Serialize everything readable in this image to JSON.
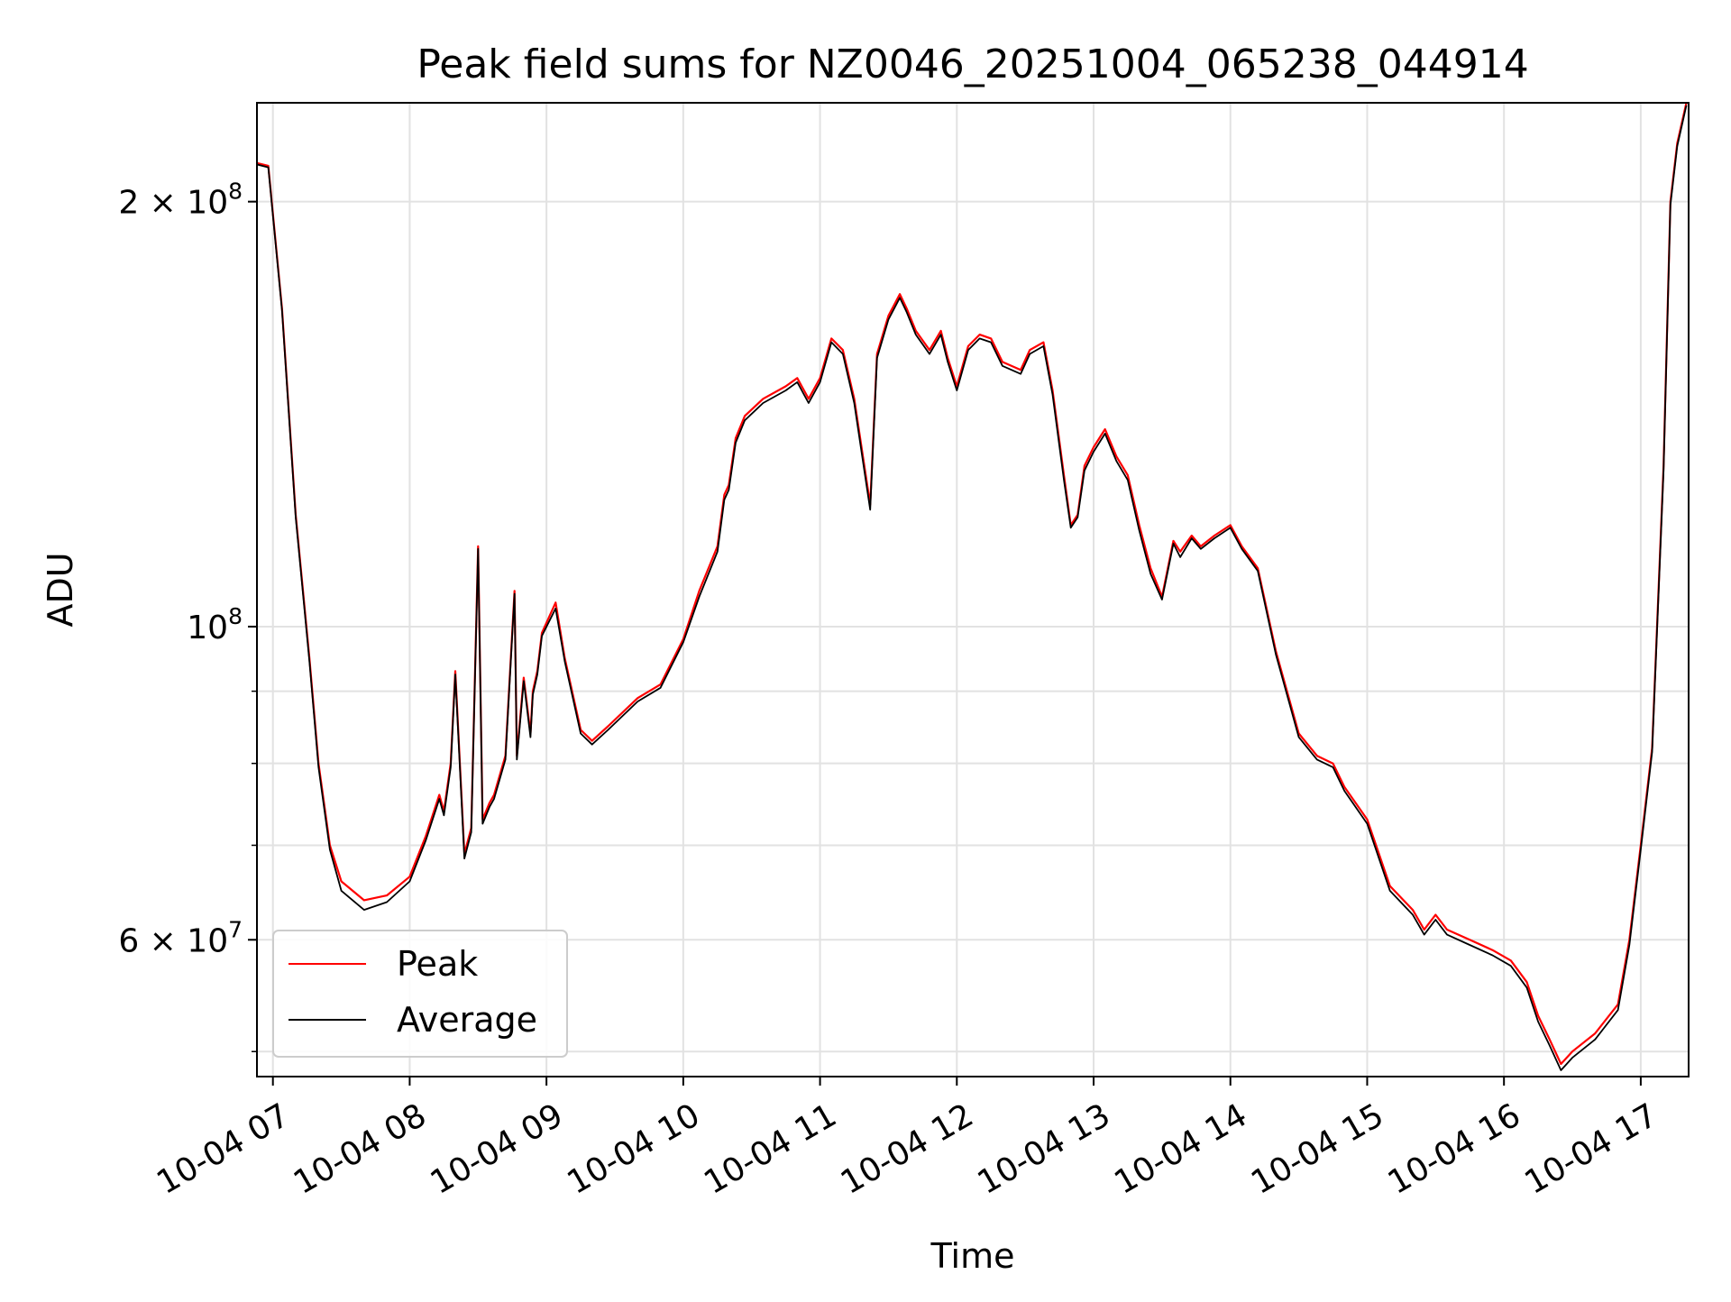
{
  "chart_data": {
    "type": "line",
    "title": "Peak field sums for NZ0046_20251004_065238_044914",
    "xlabel": "Time",
    "ylabel": "ADU",
    "y_scale": "log",
    "ylim": [
      48000000,
      235000000
    ],
    "xlim": [
      "2025-10-04 06:53",
      "2025-10-04 17:21"
    ],
    "grid": true,
    "legend_position": "lower-left",
    "x_tick_labels": [
      "10-04 07",
      "10-04 08",
      "10-04 09",
      "10-04 10",
      "10-04 11",
      "10-04 12",
      "10-04 13",
      "10-04 14",
      "10-04 15",
      "10-04 16",
      "10-04 17"
    ],
    "x_ticks": [
      "2025-10-04 07:00",
      "2025-10-04 08:00",
      "2025-10-04 09:00",
      "2025-10-04 10:00",
      "2025-10-04 11:00",
      "2025-10-04 12:00",
      "2025-10-04 13:00",
      "2025-10-04 14:00",
      "2025-10-04 15:00",
      "2025-10-04 16:00",
      "2025-10-04 17:00"
    ],
    "y_tick_labels": [
      {
        "value": 200000000,
        "label": "2 × 10^8",
        "mantissa": "2 × 10",
        "exp": "8"
      },
      {
        "value": 100000000,
        "label": "10^8",
        "mantissa": "10",
        "exp": "8"
      },
      {
        "value": 60000000,
        "label": "6 × 10^7",
        "mantissa": "6 × 10",
        "exp": "7"
      }
    ],
    "y_grid_values": [
      50000000,
      60000000,
      70000000,
      80000000,
      90000000,
      100000000,
      200000000
    ],
    "series": [
      {
        "name": "Peak",
        "color": "#ff0000",
        "x": [
          "2025-10-04 06:53",
          "2025-10-04 06:58",
          "2025-10-04 07:04",
          "2025-10-04 07:10",
          "2025-10-04 07:16",
          "2025-10-04 07:20",
          "2025-10-04 07:25",
          "2025-10-04 07:30",
          "2025-10-04 07:40",
          "2025-10-04 07:50",
          "2025-10-04 08:00",
          "2025-10-04 08:07",
          "2025-10-04 08:13",
          "2025-10-04 08:15",
          "2025-10-04 08:18",
          "2025-10-04 08:20",
          "2025-10-04 08:24",
          "2025-10-04 08:27",
          "2025-10-04 08:30",
          "2025-10-04 08:32",
          "2025-10-04 08:35",
          "2025-10-04 08:37",
          "2025-10-04 08:42",
          "2025-10-04 08:46",
          "2025-10-04 08:47",
          "2025-10-04 08:50",
          "2025-10-04 08:53",
          "2025-10-04 08:54",
          "2025-10-04 08:56",
          "2025-10-04 08:58",
          "2025-10-04 09:04",
          "2025-10-04 09:08",
          "2025-10-04 09:15",
          "2025-10-04 09:20",
          "2025-10-04 09:27",
          "2025-10-04 09:40",
          "2025-10-04 09:50",
          "2025-10-04 10:00",
          "2025-10-04 10:07",
          "2025-10-04 10:15",
          "2025-10-04 10:18",
          "2025-10-04 10:20",
          "2025-10-04 10:23",
          "2025-10-04 10:27",
          "2025-10-04 10:35",
          "2025-10-04 10:45",
          "2025-10-04 10:50",
          "2025-10-04 10:55",
          "2025-10-04 11:00",
          "2025-10-04 11:05",
          "2025-10-04 11:10",
          "2025-10-04 11:15",
          "2025-10-04 11:22",
          "2025-10-04 11:25",
          "2025-10-04 11:30",
          "2025-10-04 11:35",
          "2025-10-04 11:38",
          "2025-10-04 11:42",
          "2025-10-04 11:48",
          "2025-10-04 11:53",
          "2025-10-04 11:56",
          "2025-10-04 12:00",
          "2025-10-04 12:05",
          "2025-10-04 12:10",
          "2025-10-04 12:15",
          "2025-10-04 12:20",
          "2025-10-04 12:28",
          "2025-10-04 12:32",
          "2025-10-04 12:38",
          "2025-10-04 12:42",
          "2025-10-04 12:47",
          "2025-10-04 12:50",
          "2025-10-04 12:53",
          "2025-10-04 12:56",
          "2025-10-04 13:00",
          "2025-10-04 13:05",
          "2025-10-04 13:10",
          "2025-10-04 13:15",
          "2025-10-04 13:20",
          "2025-10-04 13:25",
          "2025-10-04 13:30",
          "2025-10-04 13:35",
          "2025-10-04 13:38",
          "2025-10-04 13:43",
          "2025-10-04 13:47",
          "2025-10-04 13:53",
          "2025-10-04 14:00",
          "2025-10-04 14:05",
          "2025-10-04 14:12",
          "2025-10-04 14:20",
          "2025-10-04 14:30",
          "2025-10-04 14:38",
          "2025-10-04 14:45",
          "2025-10-04 14:50",
          "2025-10-04 15:00",
          "2025-10-04 15:10",
          "2025-10-04 15:20",
          "2025-10-04 15:25",
          "2025-10-04 15:30",
          "2025-10-04 15:35",
          "2025-10-04 15:45",
          "2025-10-04 15:55",
          "2025-10-04 16:03",
          "2025-10-04 16:10",
          "2025-10-04 16:15",
          "2025-10-04 16:20",
          "2025-10-04 16:25",
          "2025-10-04 16:30",
          "2025-10-04 16:40",
          "2025-10-04 16:50",
          "2025-10-04 16:55",
          "2025-10-04 17:00",
          "2025-10-04 17:05",
          "2025-10-04 17:10",
          "2025-10-04 17:13",
          "2025-10-04 17:16",
          "2025-10-04 17:20"
        ],
        "values": [
          213000000,
          212000000,
          168000000,
          120000000,
          95000000,
          80000000,
          70000000,
          66000000,
          64000000,
          64500000,
          66500000,
          71000000,
          76000000,
          74000000,
          80000000,
          93000000,
          69000000,
          72000000,
          114000000,
          73000000,
          75000000,
          76000000,
          81000000,
          106000000,
          81000000,
          92000000,
          84000000,
          90000000,
          93000000,
          99000000,
          104000000,
          95000000,
          84500000,
          83000000,
          85000000,
          89000000,
          91000000,
          98000000,
          106000000,
          114000000,
          124000000,
          126000000,
          136000000,
          141000000,
          145000000,
          148000000,
          150000000,
          145000000,
          150000000,
          160000000,
          157000000,
          145000000,
          122000000,
          156000000,
          166000000,
          172000000,
          168000000,
          162000000,
          157000000,
          162000000,
          155000000,
          148000000,
          158000000,
          161000000,
          160000000,
          154000000,
          152000000,
          157000000,
          159000000,
          147000000,
          128000000,
          118000000,
          120000000,
          130000000,
          134000000,
          138000000,
          132000000,
          128000000,
          118000000,
          110000000,
          105000000,
          115000000,
          113000000,
          116000000,
          114000000,
          116000000,
          118000000,
          114000000,
          110000000,
          96000000,
          84000000,
          81000000,
          80000000,
          77000000,
          73000000,
          65500000,
          63000000,
          61000000,
          62500000,
          61000000,
          60000000,
          59000000,
          58000000,
          56000000,
          53000000,
          51000000,
          49000000,
          50000000,
          51500000,
          54000000,
          60000000,
          70000000,
          82000000,
          130000000,
          200000000,
          220000000,
          235000000
        ]
      },
      {
        "name": "Average",
        "color": "#000000",
        "x": [
          "2025-10-04 06:53",
          "2025-10-04 06:58",
          "2025-10-04 07:04",
          "2025-10-04 07:10",
          "2025-10-04 07:16",
          "2025-10-04 07:20",
          "2025-10-04 07:25",
          "2025-10-04 07:30",
          "2025-10-04 07:40",
          "2025-10-04 07:50",
          "2025-10-04 08:00",
          "2025-10-04 08:07",
          "2025-10-04 08:13",
          "2025-10-04 08:15",
          "2025-10-04 08:18",
          "2025-10-04 08:20",
          "2025-10-04 08:24",
          "2025-10-04 08:27",
          "2025-10-04 08:30",
          "2025-10-04 08:32",
          "2025-10-04 08:35",
          "2025-10-04 08:37",
          "2025-10-04 08:42",
          "2025-10-04 08:46",
          "2025-10-04 08:47",
          "2025-10-04 08:50",
          "2025-10-04 08:53",
          "2025-10-04 08:54",
          "2025-10-04 08:56",
          "2025-10-04 08:58",
          "2025-10-04 09:04",
          "2025-10-04 09:08",
          "2025-10-04 09:15",
          "2025-10-04 09:20",
          "2025-10-04 09:27",
          "2025-10-04 09:40",
          "2025-10-04 09:50",
          "2025-10-04 10:00",
          "2025-10-04 10:07",
          "2025-10-04 10:15",
          "2025-10-04 10:18",
          "2025-10-04 10:20",
          "2025-10-04 10:23",
          "2025-10-04 10:27",
          "2025-10-04 10:35",
          "2025-10-04 10:45",
          "2025-10-04 10:50",
          "2025-10-04 10:55",
          "2025-10-04 11:00",
          "2025-10-04 11:05",
          "2025-10-04 11:10",
          "2025-10-04 11:15",
          "2025-10-04 11:22",
          "2025-10-04 11:25",
          "2025-10-04 11:30",
          "2025-10-04 11:35",
          "2025-10-04 11:38",
          "2025-10-04 11:42",
          "2025-10-04 11:48",
          "2025-10-04 11:53",
          "2025-10-04 11:56",
          "2025-10-04 12:00",
          "2025-10-04 12:05",
          "2025-10-04 12:10",
          "2025-10-04 12:15",
          "2025-10-04 12:20",
          "2025-10-04 12:28",
          "2025-10-04 12:32",
          "2025-10-04 12:38",
          "2025-10-04 12:42",
          "2025-10-04 12:47",
          "2025-10-04 12:50",
          "2025-10-04 12:53",
          "2025-10-04 12:56",
          "2025-10-04 13:00",
          "2025-10-04 13:05",
          "2025-10-04 13:10",
          "2025-10-04 13:15",
          "2025-10-04 13:20",
          "2025-10-04 13:25",
          "2025-10-04 13:30",
          "2025-10-04 13:35",
          "2025-10-04 13:38",
          "2025-10-04 13:43",
          "2025-10-04 13:47",
          "2025-10-04 13:53",
          "2025-10-04 14:00",
          "2025-10-04 14:05",
          "2025-10-04 14:12",
          "2025-10-04 14:20",
          "2025-10-04 14:30",
          "2025-10-04 14:38",
          "2025-10-04 14:45",
          "2025-10-04 14:50",
          "2025-10-04 15:00",
          "2025-10-04 15:10",
          "2025-10-04 15:20",
          "2025-10-04 15:25",
          "2025-10-04 15:30",
          "2025-10-04 15:35",
          "2025-10-04 15:45",
          "2025-10-04 15:55",
          "2025-10-04 16:03",
          "2025-10-04 16:10",
          "2025-10-04 16:15",
          "2025-10-04 16:20",
          "2025-10-04 16:25",
          "2025-10-04 16:30",
          "2025-10-04 16:40",
          "2025-10-04 16:50",
          "2025-10-04 16:55",
          "2025-10-04 17:00",
          "2025-10-04 17:05",
          "2025-10-04 17:10",
          "2025-10-04 17:13",
          "2025-10-04 17:16",
          "2025-10-04 17:20"
        ],
        "values": [
          212500000,
          211500000,
          167500000,
          119500000,
          94500000,
          79500000,
          69500000,
          65000000,
          63000000,
          63800000,
          66000000,
          70500000,
          75500000,
          73500000,
          79500000,
          92500000,
          68500000,
          71500000,
          113500000,
          72500000,
          74500000,
          75500000,
          80500000,
          105500000,
          80500000,
          91500000,
          83500000,
          89500000,
          92500000,
          98500000,
          103000000,
          94500000,
          84000000,
          82500000,
          84500000,
          88500000,
          90500000,
          97500000,
          105000000,
          113000000,
          123000000,
          125000000,
          135000000,
          140000000,
          144000000,
          147000000,
          149000000,
          144000000,
          149000000,
          159000000,
          156000000,
          144000000,
          121000000,
          155000000,
          165000000,
          171000000,
          167000000,
          161000000,
          156000000,
          161000000,
          154000000,
          147000000,
          157000000,
          160000000,
          159000000,
          153000000,
          151000000,
          156000000,
          158000000,
          146000000,
          127000000,
          117500000,
          119500000,
          129000000,
          133000000,
          137000000,
          131000000,
          127000000,
          117000000,
          109000000,
          104500000,
          114500000,
          112000000,
          115500000,
          113500000,
          115500000,
          117500000,
          113500000,
          109500000,
          95500000,
          83500000,
          80500000,
          79500000,
          76500000,
          72500000,
          65000000,
          62500000,
          60500000,
          62000000,
          60500000,
          59500000,
          58500000,
          57500000,
          55500000,
          52500000,
          50500000,
          48500000,
          49500000,
          51000000,
          53500000,
          59500000,
          69500000,
          81500000,
          129000000,
          199000000,
          219000000,
          234000000
        ]
      }
    ]
  }
}
